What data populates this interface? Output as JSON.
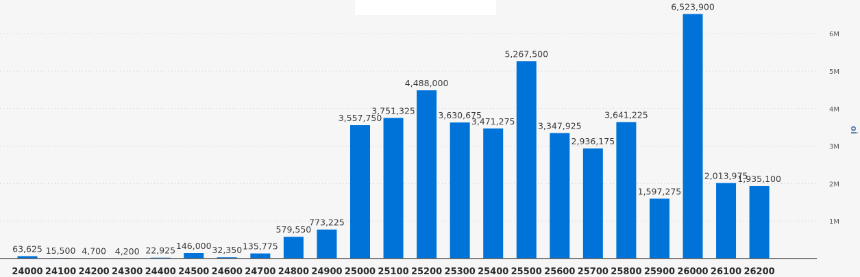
{
  "chart_data": {
    "type": "bar",
    "title": "",
    "xlabel": "",
    "ylabel": "oi",
    "ylim": [
      0,
      7000000
    ],
    "yticks": [
      {
        "value": 1000000,
        "label": "1M"
      },
      {
        "value": 2000000,
        "label": "2M"
      },
      {
        "value": 3000000,
        "label": "3M"
      },
      {
        "value": 4000000,
        "label": "4M"
      },
      {
        "value": 5000000,
        "label": "5M"
      },
      {
        "value": 6000000,
        "label": "6M"
      }
    ],
    "grid": true,
    "bar_color": "#0073d9",
    "categories": [
      "24000",
      "24100",
      "24200",
      "24300",
      "24400",
      "24500",
      "24600",
      "24700",
      "24800",
      "24900",
      "25000",
      "25100",
      "25200",
      "25300",
      "25400",
      "25500",
      "25600",
      "25700",
      "25800",
      "25900",
      "26000",
      "26100",
      "26200"
    ],
    "values": [
      63625,
      15500,
      4700,
      4200,
      22925,
      146000,
      32350,
      135775,
      579550,
      773225,
      3557750,
      3751325,
      4488000,
      3630675,
      3471275,
      5267500,
      3347925,
      2936175,
      3641225,
      1597275,
      6523900,
      2013975,
      1935100
    ],
    "data_labels": [
      "63,625",
      "15,500",
      "4,700",
      "4,200",
      "22,925",
      "146,000",
      "32,350",
      "135,775",
      "579,550",
      "773,225",
      "3,557,750",
      "3,751,325",
      "4,488,000",
      "3,630,675",
      "3,471,275",
      "5,267,500",
      "3,347,925",
      "2,936,175",
      "3,641,225",
      "1,597,275",
      "6,523,900",
      "2,013,975",
      "1,935,100"
    ]
  }
}
